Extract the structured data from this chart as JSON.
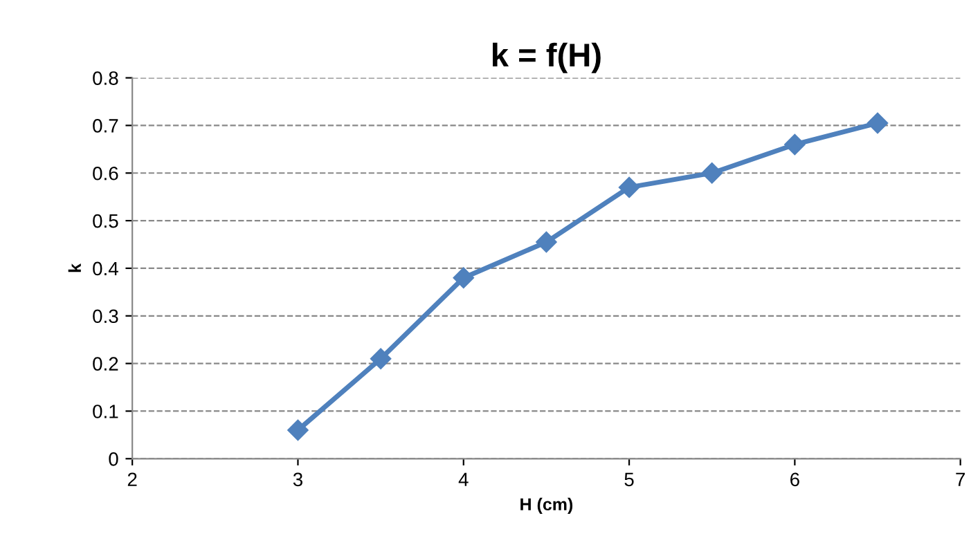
{
  "chart_data": {
    "type": "line",
    "title": "k = f(H)",
    "xlabel": "H (cm)",
    "ylabel": "k",
    "x": [
      3,
      3.5,
      4,
      4.5,
      5,
      5.5,
      6,
      6.5
    ],
    "series": [
      {
        "color": "#4f81bd",
        "values": [
          0.06,
          0.21,
          0.38,
          0.455,
          0.57,
          0.6,
          0.66,
          0.705
        ]
      }
    ],
    "xlim": [
      2,
      7
    ],
    "xticks": [
      2,
      3,
      4,
      5,
      6,
      7
    ],
    "ylim": [
      0,
      0.8
    ],
    "yticks": [
      0,
      0.1,
      0.2,
      0.3,
      0.4,
      0.5,
      0.6,
      0.7,
      0.8
    ],
    "grid": "y",
    "marker": "diamond",
    "line_style": "solid"
  }
}
